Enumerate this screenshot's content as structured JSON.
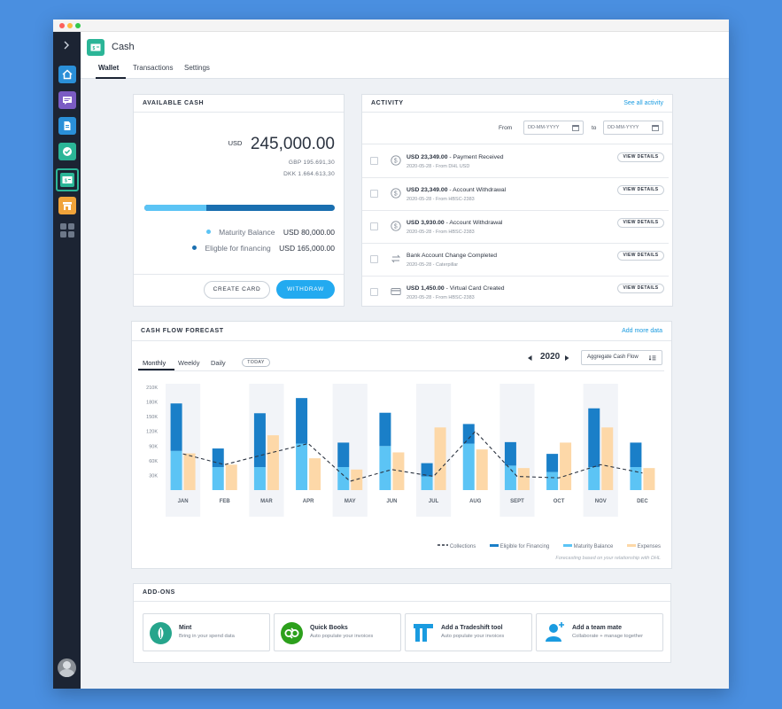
{
  "app": {
    "title": "Cash"
  },
  "tabs": [
    {
      "label": "Wallet",
      "active": true
    },
    {
      "label": "Transactions",
      "active": false
    },
    {
      "label": "Settings",
      "active": false
    }
  ],
  "sidebar": {
    "items": [
      {
        "name": "home-icon",
        "color": "#2a8fd8"
      },
      {
        "name": "chat-icon",
        "color": "#7b5cc4"
      },
      {
        "name": "document-icon",
        "color": "#2a8fd8"
      },
      {
        "name": "check-icon",
        "color": "#2bb597"
      },
      {
        "name": "cash-icon",
        "color": "#2bb597"
      },
      {
        "name": "store-icon",
        "color": "#f0a33a"
      },
      {
        "name": "apps-grid-icon",
        "color": "#1c2433"
      }
    ]
  },
  "available_cash": {
    "title": "AVAILABLE CASH",
    "currency": "USD",
    "amount": "245,000.00",
    "gbp": "GBP 195.691,30",
    "dkk": "DKK 1.664.613,30",
    "maturity_fraction": 0.327,
    "legend": [
      {
        "label": "Maturity Balance",
        "value": "USD 80,000.00",
        "color": "#5cc4f5"
      },
      {
        "label": "Eligble for financing",
        "value": "USD 165,000.00",
        "color": "#1a6fb0"
      }
    ],
    "create_card": "CREATE CARD",
    "withdraw": "WITHDRAW"
  },
  "activity": {
    "title": "ACTIVITY",
    "see_all": "See all activity",
    "from_label": "From",
    "to_label": "to",
    "date_placeholder": "DD-MM-YYYY",
    "view_details": "VIEW DETAILS",
    "items": [
      {
        "amount": "USD 23,349.00",
        "desc": " - Payment Received",
        "sub": "2020-05-28 - From DHL USD",
        "icon": "dollar-circle-icon"
      },
      {
        "amount": "USD 23,349.00",
        "desc": " - Account Withdrawal",
        "sub": "2020-05-28 - From HBSC-2383",
        "icon": "dollar-circle-icon"
      },
      {
        "amount": "USD 3,930.00",
        "desc": " - Account  Withdrawal",
        "sub": "2020-05-28 - From HBSC-2383",
        "icon": "dollar-circle-icon"
      },
      {
        "amount": "",
        "desc": "Bank Account Change Completed",
        "sub": "2020-05-28 - Caterpillar",
        "icon": "swap-arrows-icon"
      },
      {
        "amount": "USD 1,450.00",
        "desc": " - Virtual Card Created",
        "sub": "2020-05-28 - From HBSC-2383",
        "icon": "credit-card-icon"
      }
    ]
  },
  "forecast": {
    "title": "CASH FLOW FORECAST",
    "add_more": "Add more data",
    "tabs": [
      "Monthly",
      "Weekly",
      "Daily"
    ],
    "today": "TODAY",
    "year": "2020",
    "select": "Aggregate Cash Flow",
    "note": "Forecasting based on your relationship with DHL"
  },
  "chart_data": {
    "type": "bar",
    "categories": [
      "JAN",
      "FEB",
      "MAR",
      "APR",
      "MAY",
      "JUN",
      "JUL",
      "AUG",
      "SEPT",
      "OCT",
      "NOV",
      "DEC"
    ],
    "yticks": [
      "30K",
      "60K",
      "90K",
      "120K",
      "150K",
      "180K",
      "210K"
    ],
    "ylim": [
      0,
      210
    ],
    "series": [
      {
        "name": "Maturity Balance",
        "color": "#5cc4f5",
        "values": [
          80,
          47,
          47,
          95,
          47,
          90,
          28,
          95,
          50,
          37,
          47,
          47
        ]
      },
      {
        "name": "Eligible for Financing",
        "color": "#1a7fc8",
        "values": [
          97,
          38,
          110,
          93,
          50,
          68,
          27,
          40,
          48,
          37,
          120,
          50
        ]
      },
      {
        "name": "Expenses",
        "color": "#fdd8a8",
        "values": [
          75,
          52,
          112,
          65,
          42,
          77,
          128,
          83,
          45,
          97,
          128,
          45
        ]
      },
      {
        "name": "Collections",
        "color": "#2b3340",
        "values": [
          74,
          52,
          74,
          95,
          18,
          42,
          28,
          120,
          28,
          25,
          52,
          35
        ]
      }
    ],
    "legend": [
      "Collections",
      "Eligible for Financing",
      "Maturity Balance",
      "Expenses"
    ],
    "shaded_months": [
      "JAN",
      "MAR",
      "MAY",
      "JUL",
      "SEPT",
      "NOV"
    ]
  },
  "addons": {
    "title": "ADD-ONS",
    "items": [
      {
        "title": "Mint",
        "sub": "Bring in your spend data",
        "icon": "mint-logo-icon",
        "color": "#26a58c"
      },
      {
        "title": "Quick Books",
        "sub": "Auto populate your invoices",
        "icon": "quickbooks-logo-icon",
        "color": "#2ca01c"
      },
      {
        "title": "Add a Tradeshift tool",
        "sub": "Auto populate your invoices",
        "icon": "tradeshift-logo-icon",
        "color": "#1a9be0"
      },
      {
        "title": "Add a team mate",
        "sub": "Collaborate + manage together",
        "icon": "add-user-icon",
        "color": "#1a9be0"
      }
    ]
  }
}
